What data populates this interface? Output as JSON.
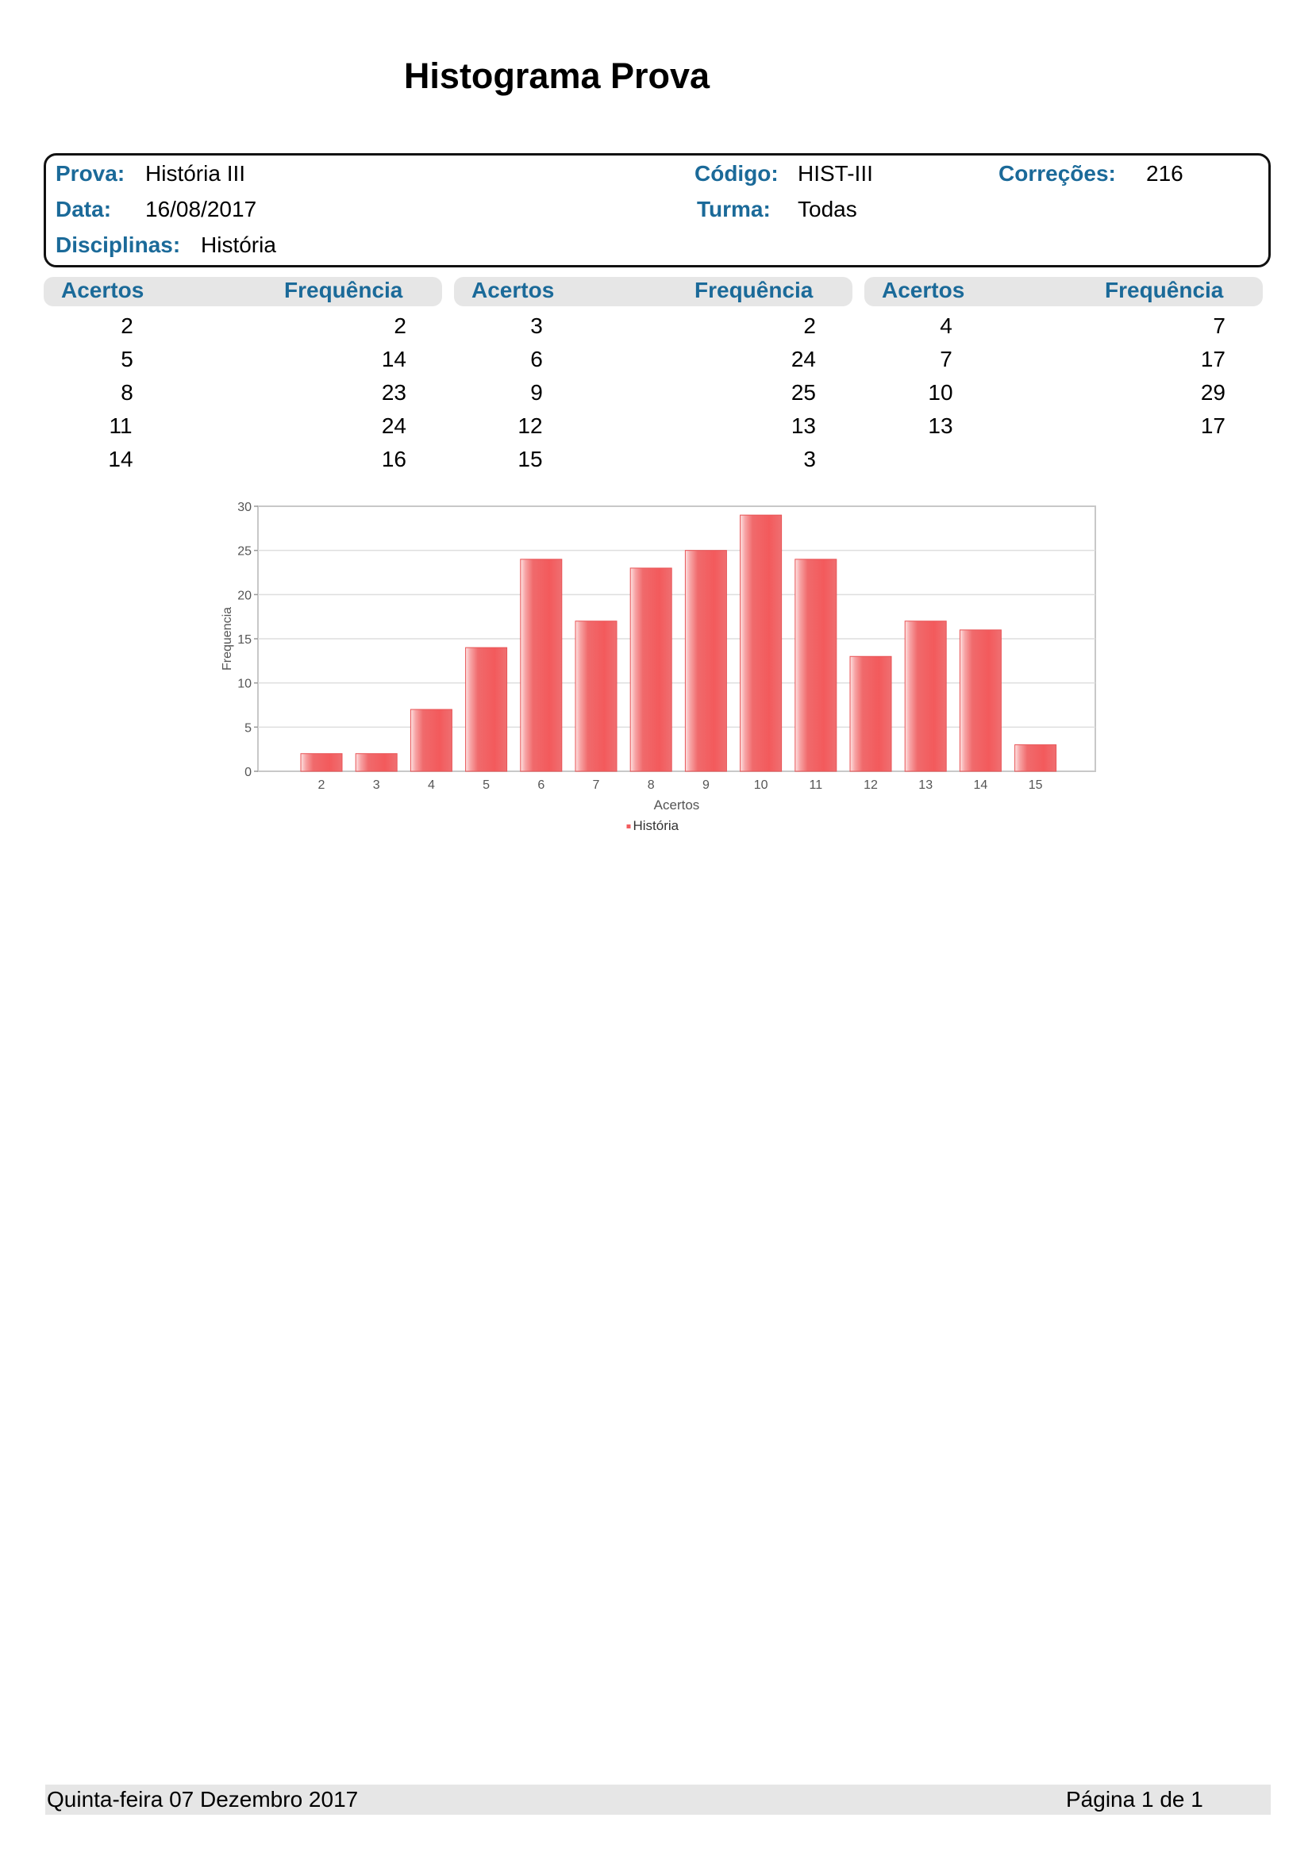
{
  "title": "Histograma Prova",
  "info": {
    "prova_label": "Prova:",
    "prova_value": "História III",
    "codigo_label": "Código:",
    "codigo_value": "HIST-III",
    "correcoes_label": "Correções:",
    "correcoes_value": "216",
    "data_label": "Data:",
    "data_value": "16/08/2017",
    "turma_label": "Turma:",
    "turma_value": "Todas",
    "disciplinas_label": "Disciplinas:",
    "disciplinas_value": "História"
  },
  "table": {
    "col_acertos": "Acertos",
    "col_frequencia": "Frequência",
    "groups": [
      [
        [
          "2",
          "2"
        ],
        [
          "5",
          "14"
        ],
        [
          "8",
          "23"
        ],
        [
          "11",
          "24"
        ],
        [
          "14",
          "16"
        ]
      ],
      [
        [
          "3",
          "2"
        ],
        [
          "6",
          "24"
        ],
        [
          "9",
          "25"
        ],
        [
          "12",
          "13"
        ],
        [
          "15",
          "3"
        ]
      ],
      [
        [
          "4",
          "7"
        ],
        [
          "7",
          "17"
        ],
        [
          "10",
          "29"
        ],
        [
          "13",
          "17"
        ]
      ]
    ]
  },
  "chart_data": {
    "type": "bar",
    "categories": [
      "2",
      "3",
      "4",
      "5",
      "6",
      "7",
      "8",
      "9",
      "10",
      "11",
      "12",
      "13",
      "14",
      "15"
    ],
    "series": [
      {
        "name": "História",
        "values": [
          2,
          2,
          7,
          14,
          24,
          17,
          23,
          25,
          29,
          24,
          13,
          17,
          16,
          3
        ],
        "color": "#f25d5f"
      }
    ],
    "xlabel": "Acertos",
    "ylabel": "Frequencia",
    "ylim": [
      0,
      30
    ],
    "yticks": [
      0,
      5,
      10,
      15,
      20,
      25,
      30
    ],
    "grid": true,
    "legend_position": "bottom"
  },
  "footer": {
    "date": "Quinta-feira 07 Dezembro 2017",
    "page": "Página 1 de 1"
  }
}
